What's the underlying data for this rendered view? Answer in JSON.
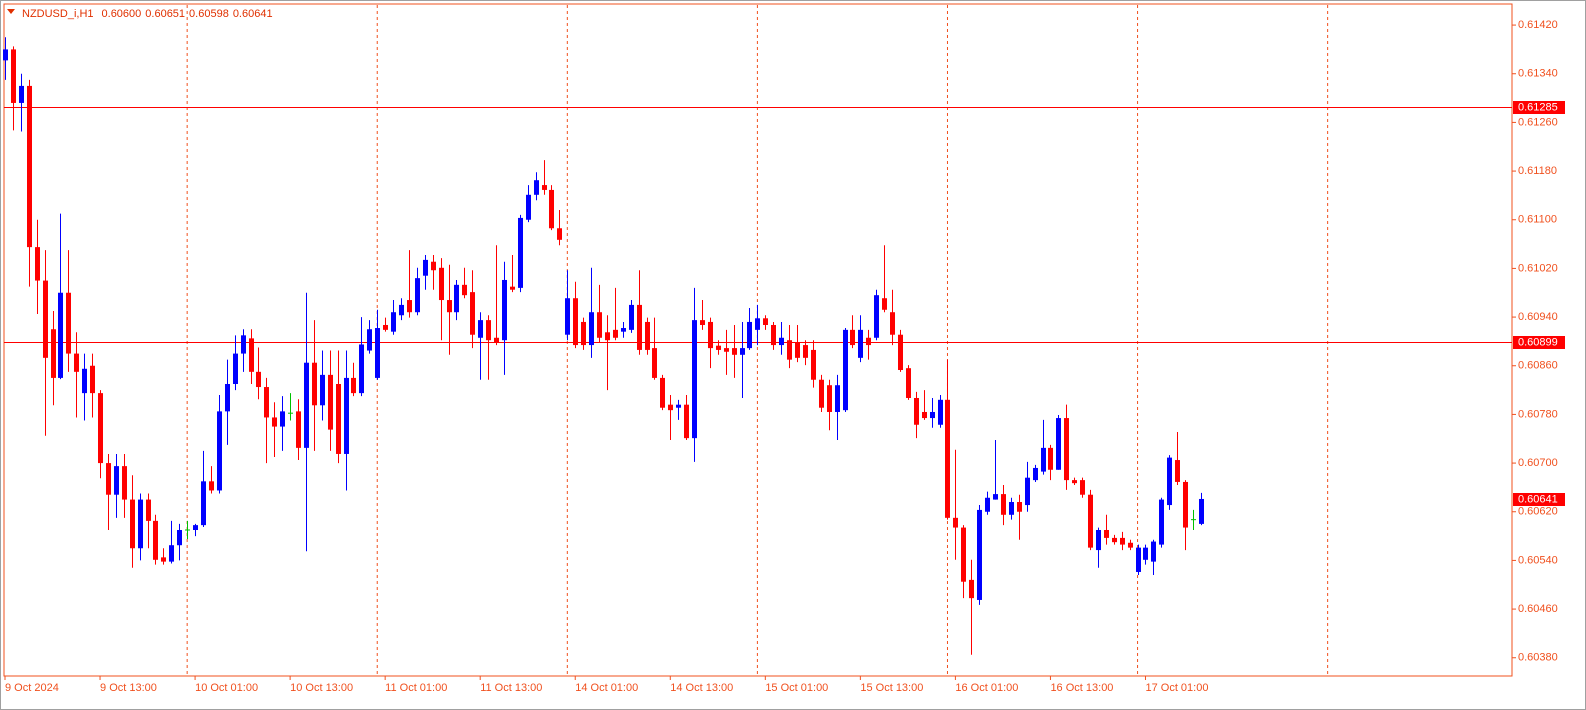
{
  "chart_data": {
    "type": "candlestick",
    "title": "NZDUSD_i,H1",
    "title_values": [
      "0.60600",
      "0.60651",
      "0.60598",
      "0.60641"
    ],
    "up_color": "#0000ff",
    "down_color": "#ff0000",
    "doji_color": "#00c000",
    "axis_color": "#f0501e",
    "level_color": "#ff0000",
    "period_separators": true,
    "ylim": [
      0.6035,
      0.61453
    ],
    "yticks": [
      {
        "value": 0.6142,
        "label": "0.61420"
      },
      {
        "value": 0.6134,
        "label": "0.61340"
      },
      {
        "value": 0.6126,
        "label": "0.61260"
      },
      {
        "value": 0.6118,
        "label": "0.61180"
      },
      {
        "value": 0.611,
        "label": "0.61100"
      },
      {
        "value": 0.6102,
        "label": "0.61020"
      },
      {
        "value": 0.6094,
        "label": "0.60940"
      },
      {
        "value": 0.6086,
        "label": "0.60860"
      },
      {
        "value": 0.6078,
        "label": "0.60780"
      },
      {
        "value": 0.607,
        "label": "0.60700"
      },
      {
        "value": 0.6062,
        "label": "0.60620"
      },
      {
        "value": 0.6054,
        "label": "0.60540"
      },
      {
        "value": 0.6046,
        "label": "0.60460"
      },
      {
        "value": 0.6038,
        "label": "0.60380"
      }
    ],
    "levels": [
      0.61285,
      0.60899
    ],
    "categories": [
      "9 Oct 2024",
      null,
      null,
      null,
      null,
      null,
      null,
      null,
      null,
      null,
      null,
      null,
      "9 Oct 13:00",
      null,
      null,
      null,
      null,
      null,
      null,
      null,
      null,
      null,
      null,
      null,
      "10 Oct 01:00",
      null,
      null,
      null,
      null,
      null,
      null,
      null,
      null,
      null,
      null,
      null,
      "10 Oct 13:00",
      null,
      null,
      null,
      null,
      null,
      null,
      null,
      null,
      null,
      null,
      null,
      "11 Oct 01:00",
      null,
      null,
      null,
      null,
      null,
      null,
      null,
      null,
      null,
      null,
      null,
      "11 Oct 13:00",
      null,
      null,
      null,
      null,
      null,
      null,
      null,
      null,
      null,
      null,
      null,
      "14 Oct 01:00",
      null,
      null,
      null,
      null,
      null,
      null,
      null,
      null,
      null,
      null,
      null,
      "14 Oct 13:00",
      null,
      null,
      null,
      null,
      null,
      null,
      null,
      null,
      null,
      null,
      null,
      "15 Oct 01:00",
      null,
      null,
      null,
      null,
      null,
      null,
      null,
      null,
      null,
      null,
      null,
      "15 Oct 13:00",
      null,
      null,
      null,
      null,
      null,
      null,
      null,
      null,
      null,
      null,
      null,
      "16 Oct 01:00",
      null,
      null,
      null,
      null,
      null,
      null,
      null,
      null,
      null,
      null,
      null,
      "16 Oct 13:00",
      null,
      null,
      null,
      null,
      null,
      null,
      null,
      null,
      null,
      null,
      null,
      "17 Oct 01:00",
      null,
      null,
      null,
      null,
      null,
      null,
      null
    ],
    "open": [
      0.61362,
      0.6138,
      0.61292,
      0.6132,
      0.61055,
      0.61,
      0.6092,
      0.6084,
      0.6098,
      0.6088,
      0.60815,
      0.6086,
      0.60815,
      0.607,
      0.60648,
      0.60695,
      0.6064,
      0.6056,
      0.6064,
      0.60605,
      0.60545,
      0.60538,
      0.60565,
      0.6059,
      0.6059,
      0.60598,
      0.6067,
      0.60655,
      0.60785,
      0.6083,
      0.6088,
      0.60905,
      0.6085,
      0.60825,
      0.60775,
      0.6076,
      0.60782,
      0.60785,
      0.60725,
      0.60865,
      0.60795,
      0.60845,
      0.6083,
      0.60715,
      0.6084,
      0.60815,
      0.60885,
      0.6084,
      0.60927,
      0.60916,
      0.60943,
      0.60968,
      0.60948,
      0.61008,
      0.61031,
      0.61021,
      0.60968,
      0.60948,
      0.60993,
      0.60981,
      0.60906,
      0.60935,
      0.60906,
      0.60902,
      0.6099,
      0.60988,
      0.611,
      0.61141,
      0.61157,
      0.61149,
      0.61086,
      0.60911,
      0.60971,
      0.60932,
      0.60894,
      0.60948,
      0.60915,
      0.60919,
      0.60916,
      0.60919,
      0.6096,
      0.60932,
      0.60889,
      0.6084,
      0.60796,
      0.60791,
      0.60796,
      0.60741,
      0.60935,
      0.60932,
      0.60893,
      0.60889,
      0.60889,
      0.60878,
      0.60889,
      0.60919,
      0.60938,
      0.60927,
      0.60894,
      0.60902,
      0.60899,
      0.60894,
      0.60886,
      0.60837,
      0.60828,
      0.60784,
      0.60787,
      0.60919,
      0.60873,
      0.60906,
      0.60906,
      0.60971,
      0.60948,
      0.60911,
      0.60856,
      0.60807,
      0.60784,
      0.60774,
      0.60763,
      0.60804,
      0.6061,
      0.60594,
      0.60508,
      0.60475,
      0.6062,
      0.6064,
      0.60649,
      0.60615,
      0.60636,
      0.60631,
      0.60672,
      0.60686,
      0.60725,
      0.60689,
      0.60774,
      0.60672,
      0.60672,
      0.60648,
      0.60557,
      0.6059,
      0.60577,
      0.60577,
      0.60569,
      0.60521,
      0.60541,
      0.60538,
      0.60566,
      0.60631,
      0.60705,
      0.60669,
      0.60607,
      0.606
    ],
    "high": [
      0.614,
      0.61385,
      0.6134,
      0.6133,
      0.611,
      0.6105,
      0.6095,
      0.6111,
      0.6105,
      0.60915,
      0.6088,
      0.6088,
      0.6082,
      0.60715,
      0.60715,
      0.60715,
      0.6068,
      0.6065,
      0.6065,
      0.60615,
      0.6056,
      0.60605,
      0.606,
      0.60605,
      0.606,
      0.6072,
      0.60695,
      0.60812,
      0.6087,
      0.6091,
      0.6092,
      0.6092,
      0.6089,
      0.6084,
      0.608,
      0.6081,
      0.60815,
      0.60805,
      0.6098,
      0.60935,
      0.60885,
      0.60885,
      0.60885,
      0.60885,
      0.60865,
      0.6094,
      0.60935,
      0.60952,
      0.60939,
      0.60968,
      0.60971,
      0.6105,
      0.61021,
      0.61042,
      0.61042,
      0.61037,
      0.61026,
      0.61001,
      0.61021,
      0.61017,
      0.60948,
      0.60943,
      0.61058,
      0.61031,
      0.61042,
      0.61108,
      0.61157,
      0.61178,
      0.61198,
      0.61157,
      0.61116,
      0.61017,
      0.60998,
      0.60939,
      0.61021,
      0.60993,
      0.60943,
      0.60988,
      0.60932,
      0.60968,
      0.61017,
      0.60939,
      0.60939,
      0.60845,
      0.60812,
      0.60804,
      0.60812,
      0.60988,
      0.60968,
      0.60939,
      0.60902,
      0.60919,
      0.60927,
      0.60932,
      0.60955,
      0.6096,
      0.60943,
      0.60932,
      0.60932,
      0.60927,
      0.60927,
      0.60902,
      0.60902,
      0.60845,
      0.60837,
      0.60845,
      0.60922,
      0.60943,
      0.60943,
      0.60919,
      0.60985,
      0.61058,
      0.60985,
      0.60919,
      0.60861,
      0.60817,
      0.6082,
      0.60807,
      0.60812,
      0.6087,
      0.60722,
      0.60598,
      0.60541,
      0.60631,
      0.60653,
      0.60738,
      0.60664,
      0.60643,
      0.60648,
      0.60702,
      0.60697,
      0.60771,
      0.6073,
      0.60779,
      0.60796,
      0.60676,
      0.60676,
      0.60656,
      0.60594,
      0.60615,
      0.60582,
      0.60587,
      0.60574,
      0.60566,
      0.60566,
      0.60574,
      0.60643,
      0.60713,
      0.60751,
      0.60672,
      0.60623,
      0.60651
    ],
    "low": [
      0.6133,
      0.61247,
      0.61245,
      0.6099,
      0.60945,
      0.60745,
      0.60795,
      0.60838,
      0.6085,
      0.60775,
      0.6077,
      0.60775,
      0.60675,
      0.6059,
      0.6061,
      0.6061,
      0.60528,
      0.6054,
      0.6056,
      0.60533,
      0.60533,
      0.60535,
      0.6054,
      0.60575,
      0.6058,
      0.60595,
      0.6065,
      0.6065,
      0.6073,
      0.6082,
      0.6085,
      0.6083,
      0.60805,
      0.607,
      0.6071,
      0.6072,
      0.6077,
      0.60705,
      0.60555,
      0.6072,
      0.6077,
      0.6072,
      0.607,
      0.60655,
      0.6081,
      0.6081,
      0.6088,
      0.60837,
      0.60916,
      0.60911,
      0.60935,
      0.60939,
      0.60943,
      0.60985,
      0.60985,
      0.60902,
      0.60878,
      0.60935,
      0.60971,
      0.60889,
      0.60837,
      0.60837,
      0.60894,
      0.60845,
      0.60981,
      0.60981,
      0.61096,
      0.61132,
      0.61141,
      0.61083,
      0.61058,
      0.60902,
      0.60889,
      0.60886,
      0.60873,
      0.60899,
      0.6082,
      0.60902,
      0.60906,
      0.60914,
      0.60878,
      0.60878,
      0.60837,
      0.60787,
      0.60738,
      0.60771,
      0.60738,
      0.60702,
      0.60919,
      0.60856,
      0.60878,
      0.60845,
      0.6084,
      0.60807,
      0.60886,
      0.60894,
      0.60919,
      0.60886,
      0.60878,
      0.60856,
      0.60866,
      0.60861,
      0.60824,
      0.60784,
      0.60754,
      0.60738,
      0.60784,
      0.60889,
      0.60866,
      0.6087,
      0.60902,
      0.60948,
      0.60894,
      0.6085,
      0.60804,
      0.60741,
      0.60771,
      0.60758,
      0.60758,
      0.60607,
      0.60541,
      0.60478,
      0.60385,
      0.60467,
      0.60615,
      0.6064,
      0.60598,
      0.60607,
      0.60574,
      0.6062,
      0.60669,
      0.60681,
      0.60672,
      0.60689,
      0.60656,
      0.60664,
      0.60643,
      0.60557,
      0.60528,
      0.60566,
      0.60566,
      0.60557,
      0.60557,
      0.60516,
      0.60533,
      0.60516,
      0.60561,
      0.60623,
      0.60664,
      0.60557,
      0.6059,
      0.60598
    ],
    "close": [
      0.6138,
      0.61292,
      0.6132,
      0.61055,
      0.61,
      0.60873,
      0.6084,
      0.6098,
      0.6088,
      0.6085,
      0.60855,
      0.60815,
      0.607,
      0.60648,
      0.60695,
      0.6064,
      0.6056,
      0.6064,
      0.60605,
      0.60541,
      0.60538,
      0.60565,
      0.6059,
      0.6059,
      0.60598,
      0.6067,
      0.60655,
      0.60785,
      0.6083,
      0.6088,
      0.6091,
      0.6085,
      0.60825,
      0.60775,
      0.6076,
      0.60785,
      0.60782,
      0.60725,
      0.60865,
      0.60795,
      0.60845,
      0.60755,
      0.60715,
      0.6084,
      0.60815,
      0.60895,
      0.6092,
      0.60922,
      0.60919,
      0.60948,
      0.6096,
      0.60948,
      0.61004,
      0.61034,
      0.61017,
      0.60968,
      0.60948,
      0.60993,
      0.60976,
      0.60911,
      0.60935,
      0.60902,
      0.60899,
      0.61001,
      0.60985,
      0.61103,
      0.61141,
      0.61165,
      0.61149,
      0.61086,
      0.61067,
      0.60971,
      0.60894,
      0.60894,
      0.60948,
      0.60906,
      0.60902,
      0.60906,
      0.60922,
      0.6096,
      0.60886,
      0.60886,
      0.6084,
      0.60791,
      0.60787,
      0.60796,
      0.60741,
      0.60935,
      0.60927,
      0.60889,
      0.60886,
      0.60883,
      0.60878,
      0.60889,
      0.60932,
      0.60938,
      0.60927,
      0.60894,
      0.60906,
      0.6087,
      0.60873,
      0.60873,
      0.60837,
      0.60791,
      0.60784,
      0.60828,
      0.60919,
      0.60894,
      0.60919,
      0.60894,
      0.60976,
      0.60952,
      0.60911,
      0.60853,
      0.60807,
      0.60763,
      0.60774,
      0.60784,
      0.60804,
      0.6061,
      0.60594,
      0.60505,
      0.60478,
      0.60623,
      0.60643,
      0.60649,
      0.60615,
      0.60636,
      0.6062,
      0.60676,
      0.60692,
      0.60725,
      0.60689,
      0.60774,
      0.60672,
      0.60667,
      0.60648,
      0.60561,
      0.6059,
      0.60577,
      0.6057,
      0.60566,
      0.60561,
      0.60561,
      0.60561,
      0.60571,
      0.6064,
      0.60709,
      0.60669,
      0.60594,
      0.60607,
      0.60641
    ]
  }
}
